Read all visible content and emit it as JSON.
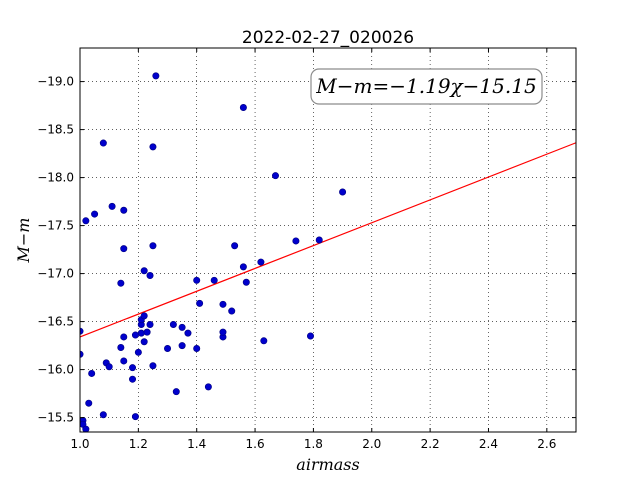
{
  "chart_data": {
    "type": "scatter",
    "title": "2022-02-27_020026",
    "xlabel": "airmass",
    "ylabel": "M−m",
    "xlim": [
      1.0,
      2.7
    ],
    "ylim": [
      -19.35,
      -15.35
    ],
    "y_inverted": true,
    "grid": true,
    "xticks": [
      1.0,
      1.2,
      1.4,
      1.6,
      1.8,
      2.0,
      2.2,
      2.4,
      2.6
    ],
    "xtick_labels": [
      "1.0",
      "1.2",
      "1.4",
      "1.6",
      "1.8",
      "2.0",
      "2.2",
      "2.4",
      "2.6"
    ],
    "yticks": [
      -15.5,
      -16.0,
      -16.5,
      -17.0,
      -17.5,
      -18.0,
      -18.5,
      -19.0
    ],
    "ytick_labels": [
      "−15.5",
      "−16.0",
      "−16.5",
      "−17.0",
      "−17.5",
      "−18.0",
      "−18.5",
      "−19.0"
    ],
    "annotation": "M−m=−1.19χ−15.15",
    "annotation_placement": "top-right",
    "fit": {
      "slope": -1.19,
      "intercept": -15.15,
      "color": "#ff0000"
    },
    "point_color": "#0000cc",
    "points": [
      {
        "x": 1.0,
        "y": -16.16
      },
      {
        "x": 1.0,
        "y": -16.4
      },
      {
        "x": 1.01,
        "y": -15.47
      },
      {
        "x": 1.01,
        "y": -15.43
      },
      {
        "x": 1.02,
        "y": -15.38
      },
      {
        "x": 1.02,
        "y": -17.55
      },
      {
        "x": 1.03,
        "y": -15.65
      },
      {
        "x": 1.04,
        "y": -15.96
      },
      {
        "x": 1.05,
        "y": -17.62
      },
      {
        "x": 1.08,
        "y": -15.53
      },
      {
        "x": 1.08,
        "y": -18.36
      },
      {
        "x": 1.09,
        "y": -16.07
      },
      {
        "x": 1.1,
        "y": -16.03
      },
      {
        "x": 1.11,
        "y": -17.7
      },
      {
        "x": 1.14,
        "y": -16.9
      },
      {
        "x": 1.14,
        "y": -16.23
      },
      {
        "x": 1.15,
        "y": -16.34
      },
      {
        "x": 1.15,
        "y": -16.09
      },
      {
        "x": 1.15,
        "y": -17.26
      },
      {
        "x": 1.15,
        "y": -17.66
      },
      {
        "x": 1.18,
        "y": -15.9
      },
      {
        "x": 1.18,
        "y": -16.02
      },
      {
        "x": 1.19,
        "y": -15.51
      },
      {
        "x": 1.19,
        "y": -16.36
      },
      {
        "x": 1.2,
        "y": -16.18
      },
      {
        "x": 1.21,
        "y": -16.38
      },
      {
        "x": 1.21,
        "y": -16.47
      },
      {
        "x": 1.21,
        "y": -16.52
      },
      {
        "x": 1.22,
        "y": -16.56
      },
      {
        "x": 1.22,
        "y": -16.29
      },
      {
        "x": 1.22,
        "y": -17.03
      },
      {
        "x": 1.23,
        "y": -16.39
      },
      {
        "x": 1.24,
        "y": -16.47
      },
      {
        "x": 1.24,
        "y": -16.98
      },
      {
        "x": 1.25,
        "y": -17.29
      },
      {
        "x": 1.25,
        "y": -16.04
      },
      {
        "x": 1.25,
        "y": -18.32
      },
      {
        "x": 1.26,
        "y": -19.06
      },
      {
        "x": 1.3,
        "y": -16.22
      },
      {
        "x": 1.32,
        "y": -16.47
      },
      {
        "x": 1.33,
        "y": -15.77
      },
      {
        "x": 1.35,
        "y": -16.25
      },
      {
        "x": 1.35,
        "y": -16.44
      },
      {
        "x": 1.37,
        "y": -16.38
      },
      {
        "x": 1.4,
        "y": -16.22
      },
      {
        "x": 1.4,
        "y": -16.93
      },
      {
        "x": 1.41,
        "y": -16.69
      },
      {
        "x": 1.44,
        "y": -15.82
      },
      {
        "x": 1.46,
        "y": -16.93
      },
      {
        "x": 1.49,
        "y": -16.34
      },
      {
        "x": 1.49,
        "y": -16.39
      },
      {
        "x": 1.49,
        "y": -16.68
      },
      {
        "x": 1.52,
        "y": -16.61
      },
      {
        "x": 1.53,
        "y": -17.29
      },
      {
        "x": 1.56,
        "y": -17.07
      },
      {
        "x": 1.56,
        "y": -18.73
      },
      {
        "x": 1.57,
        "y": -16.91
      },
      {
        "x": 1.62,
        "y": -17.12
      },
      {
        "x": 1.63,
        "y": -16.3
      },
      {
        "x": 1.67,
        "y": -18.02
      },
      {
        "x": 1.74,
        "y": -17.34
      },
      {
        "x": 1.79,
        "y": -16.35
      },
      {
        "x": 1.82,
        "y": -17.35
      },
      {
        "x": 1.9,
        "y": -17.85
      }
    ]
  }
}
